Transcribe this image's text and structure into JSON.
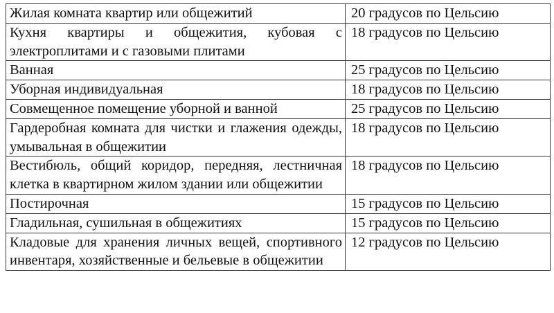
{
  "rows": [
    {
      "room": "Жилая комната квартир или общежитий",
      "temperature": "20 градусов по Цельсию"
    },
    {
      "room": "Кухня квартиры и общежития, кубовая с электроплитами и с газовыми плитами",
      "temperature": "18 градусов по Цельсию"
    },
    {
      "room": "Ванная",
      "temperature": "25 градусов по Цельсию"
    },
    {
      "room": "Уборная индивидуальная",
      "temperature": "18 градусов по Цельсию"
    },
    {
      "room": "Совмещенное помещение уборной и ванной",
      "temperature": "25 градусов по Цельсию"
    },
    {
      "room": "Гардеробная комната для чистки и глажения одежды, умывальная в общежитии",
      "temperature": "18 градусов по Цельсию"
    },
    {
      "room": "Вестибюль, общий коридор, передняя, лестничная клетка в квартирном жилом здании или общежитии",
      "temperature": "18 градусов по Цельсию"
    },
    {
      "room": "Постирочная",
      "temperature": "15 градусов по Цельсию"
    },
    {
      "room": "Гладильная, сушильная в общежитиях",
      "temperature": "15 градусов по Цельсию"
    },
    {
      "room": "Кладовые для хранения личных вещей, спортивного инвентаря, хозяйственные и бельевые в общежитии",
      "temperature": "12 градусов по Цельсию"
    }
  ]
}
